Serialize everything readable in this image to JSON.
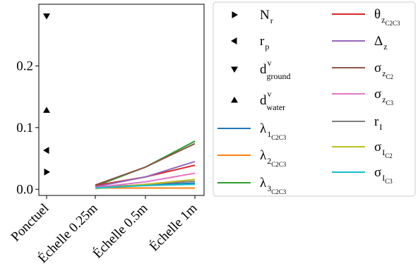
{
  "chart_data": {
    "type": "line",
    "categories": [
      "Ponctuel",
      "Échelle 0.25m",
      "Échelle 0.5m",
      "Échelle 1m"
    ],
    "ylim": [
      -0.01,
      0.3
    ],
    "yticks": [
      0.0,
      0.1,
      0.2
    ],
    "ytick_labels": [
      "0.0",
      "0.1",
      "0.2"
    ],
    "grid": false,
    "legend_placement": "outside-right",
    "markers": [
      {
        "key": "Nr",
        "base": "N",
        "sub": "r",
        "sup": "",
        "subsub": "",
        "marker": "triangle-right",
        "color": "#000000",
        "value": 0.028
      },
      {
        "key": "rp",
        "base": "r",
        "sub": "p",
        "sup": "",
        "subsub": "",
        "marker": "triangle-left",
        "color": "#000000",
        "value": 0.063
      },
      {
        "key": "dv_ground",
        "base": "d",
        "sub": "ground",
        "sup": "v",
        "subsub": "",
        "marker": "triangle-down",
        "color": "#000000",
        "value": 0.281
      },
      {
        "key": "dv_water",
        "base": "d",
        "sub": "water",
        "sup": "v",
        "subsub": "",
        "marker": "triangle-up",
        "color": "#000000",
        "value": 0.128
      }
    ],
    "series": [
      {
        "key": "lambda1",
        "base": "λ",
        "sub": "1",
        "subsub": "C2C3",
        "color": "#1f77b4",
        "values": [
          null,
          0.004,
          0.007,
          0.01
        ]
      },
      {
        "key": "lambda2",
        "base": "λ",
        "sub": "2",
        "subsub": "C2C3",
        "color": "#ff7f0e",
        "values": [
          null,
          0.002,
          0.002,
          0.002
        ]
      },
      {
        "key": "lambda3",
        "base": "λ",
        "sub": "3",
        "subsub": "C2C3",
        "color": "#2ca02c",
        "values": [
          null,
          0.005,
          0.036,
          0.078
        ]
      },
      {
        "key": "theta",
        "base": "θ",
        "sub": "z",
        "subsub": "C2C3",
        "color": "#d62728",
        "values": [
          null,
          0.006,
          0.02,
          0.039
        ]
      },
      {
        "key": "delta",
        "base": "Δ",
        "sub": "z",
        "subsub": "",
        "color": "#9467bd",
        "values": [
          null,
          0.004,
          0.02,
          0.045
        ]
      },
      {
        "key": "sigmaZC2",
        "base": "σ",
        "sub": "z",
        "subsub": "C2",
        "color": "#8c564b",
        "values": [
          null,
          0.007,
          0.036,
          0.074
        ]
      },
      {
        "key": "sigmaZC3",
        "base": "σ",
        "sub": "z",
        "subsub": "C3",
        "color": "#e377c2",
        "values": [
          null,
          0.003,
          0.012,
          0.026
        ]
      },
      {
        "key": "rI",
        "base": "r",
        "sub": "I",
        "subsub": "",
        "color": "#7f7f7f",
        "values": [
          null,
          0.002,
          0.008,
          0.013
        ]
      },
      {
        "key": "sigmaIC2",
        "base": "σ",
        "sub": "I",
        "subsub": "C2",
        "color": "#bcbd22",
        "values": [
          null,
          0.001,
          0.008,
          0.016
        ]
      },
      {
        "key": "sigmaIC3",
        "base": "σ",
        "sub": "I",
        "subsub": "C3",
        "color": "#17becf",
        "values": [
          null,
          0.002,
          0.006,
          0.008
        ]
      }
    ]
  }
}
